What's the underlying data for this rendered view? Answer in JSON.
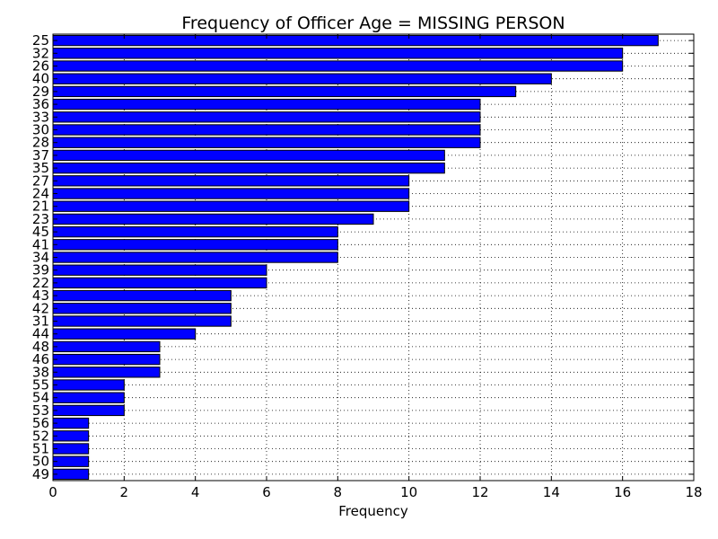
{
  "chart_data": {
    "type": "bar",
    "orientation": "horizontal",
    "title": "Frequency of Officer Age = MISSING PERSON",
    "xlabel": "Frequency",
    "ylabel": "",
    "xlim": [
      0,
      18
    ],
    "xticks": [
      0,
      2,
      4,
      6,
      8,
      10,
      12,
      14,
      16,
      18
    ],
    "grid": true,
    "bar_color": "#0000ff",
    "categories": [
      "25",
      "32",
      "26",
      "40",
      "29",
      "36",
      "33",
      "30",
      "28",
      "37",
      "35",
      "27",
      "24",
      "21",
      "23",
      "45",
      "41",
      "34",
      "39",
      "22",
      "43",
      "42",
      "31",
      "44",
      "48",
      "46",
      "38",
      "55",
      "54",
      "53",
      "56",
      "52",
      "51",
      "50",
      "49"
    ],
    "values": [
      17,
      16,
      16,
      14,
      13,
      12,
      12,
      12,
      12,
      11,
      11,
      10,
      10,
      10,
      9,
      8,
      8,
      8,
      6,
      6,
      5,
      5,
      5,
      4,
      3,
      3,
      3,
      2,
      2,
      2,
      1,
      1,
      1,
      1,
      1
    ]
  }
}
